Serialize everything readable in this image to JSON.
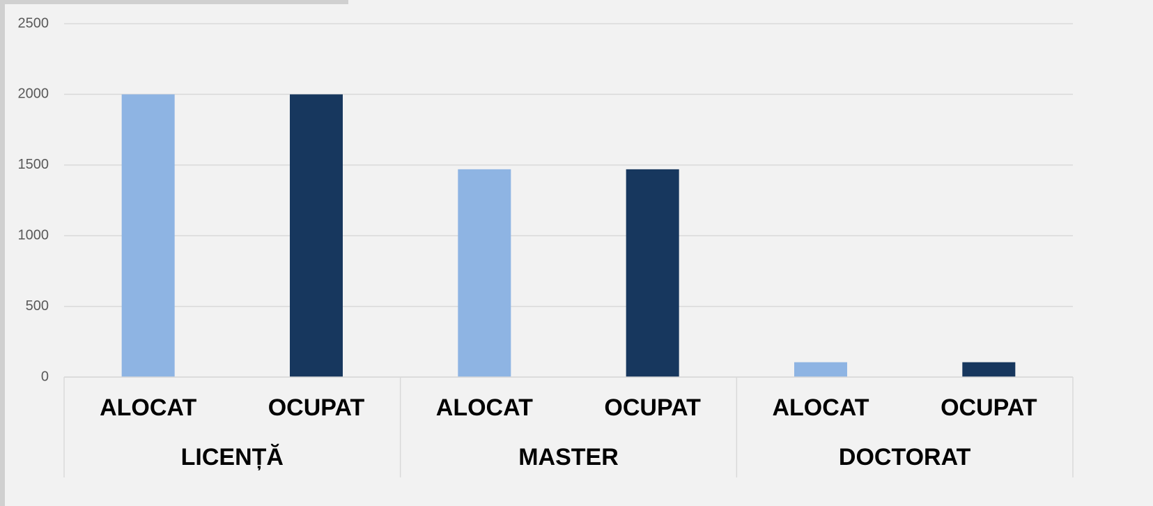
{
  "chart_data": {
    "type": "bar",
    "categories": [
      "LICENȚĂ",
      "MASTER",
      "DOCTORAT"
    ],
    "series": [
      {
        "name": "ALOCAT",
        "color": "#8eb4e3",
        "values": [
          2000,
          1470,
          105
        ]
      },
      {
        "name": "OCUPAT",
        "color": "#17375e",
        "values": [
          2000,
          1470,
          105
        ]
      }
    ],
    "ylim": [
      0,
      2500
    ],
    "yticks": [
      0,
      500,
      1000,
      1500,
      2000,
      2500
    ],
    "grid": true
  }
}
